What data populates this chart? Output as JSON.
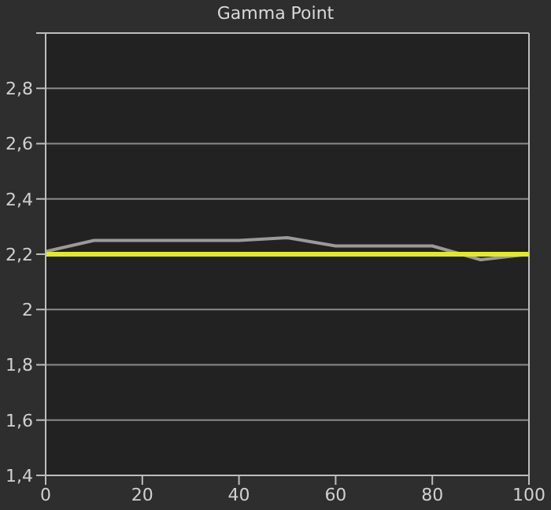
{
  "chart_data": {
    "type": "line",
    "title": "Gamma Point",
    "x": [
      0,
      10,
      20,
      30,
      40,
      50,
      60,
      70,
      80,
      90,
      100
    ],
    "series": [
      {
        "color": "#9a9a9a",
        "values": [
          2.21,
          2.25,
          2.25,
          2.25,
          2.25,
          2.26,
          2.23,
          2.23,
          2.23,
          2.18,
          2.2
        ]
      }
    ],
    "xlim": [
      0,
      100
    ],
    "xticks": [
      0,
      20,
      40,
      60,
      80,
      100
    ],
    "ylim": [
      1.4,
      3.0
    ],
    "yticks": [
      {
        "value": 1.4,
        "label": "1,4"
      },
      {
        "value": 1.6,
        "label": "1,6"
      },
      {
        "value": 1.8,
        "label": "1,8"
      },
      {
        "value": 2,
        "label": "2"
      },
      {
        "value": 2.2,
        "label": "2,2"
      },
      {
        "value": 2.4,
        "label": "2,4"
      },
      {
        "value": 2.6,
        "label": "2,6"
      },
      {
        "value": 2.8,
        "label": "2,8"
      },
      {
        "value": 3.0,
        "label": null
      }
    ],
    "ref_lines": [
      {
        "axis": "y",
        "value": 2.2,
        "color": "#e6e62e"
      }
    ],
    "grid": "y",
    "legend": false,
    "marker": "none",
    "line_style": "solid"
  }
}
